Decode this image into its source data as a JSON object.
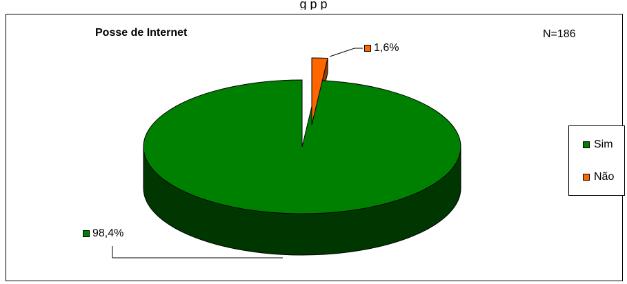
{
  "top_caption": "g                        p              p",
  "chart_data": {
    "type": "pie",
    "title": "Posse de Internet",
    "annotation": "N=186",
    "categories": [
      "Sim",
      "Não"
    ],
    "values": [
      98.4,
      1.6
    ],
    "data_labels": [
      "98,4%",
      "1,6%"
    ],
    "colors": [
      "#008000",
      "#ff6600"
    ],
    "legend_position": "right",
    "style": "3d-pie, exploded slice Não"
  }
}
